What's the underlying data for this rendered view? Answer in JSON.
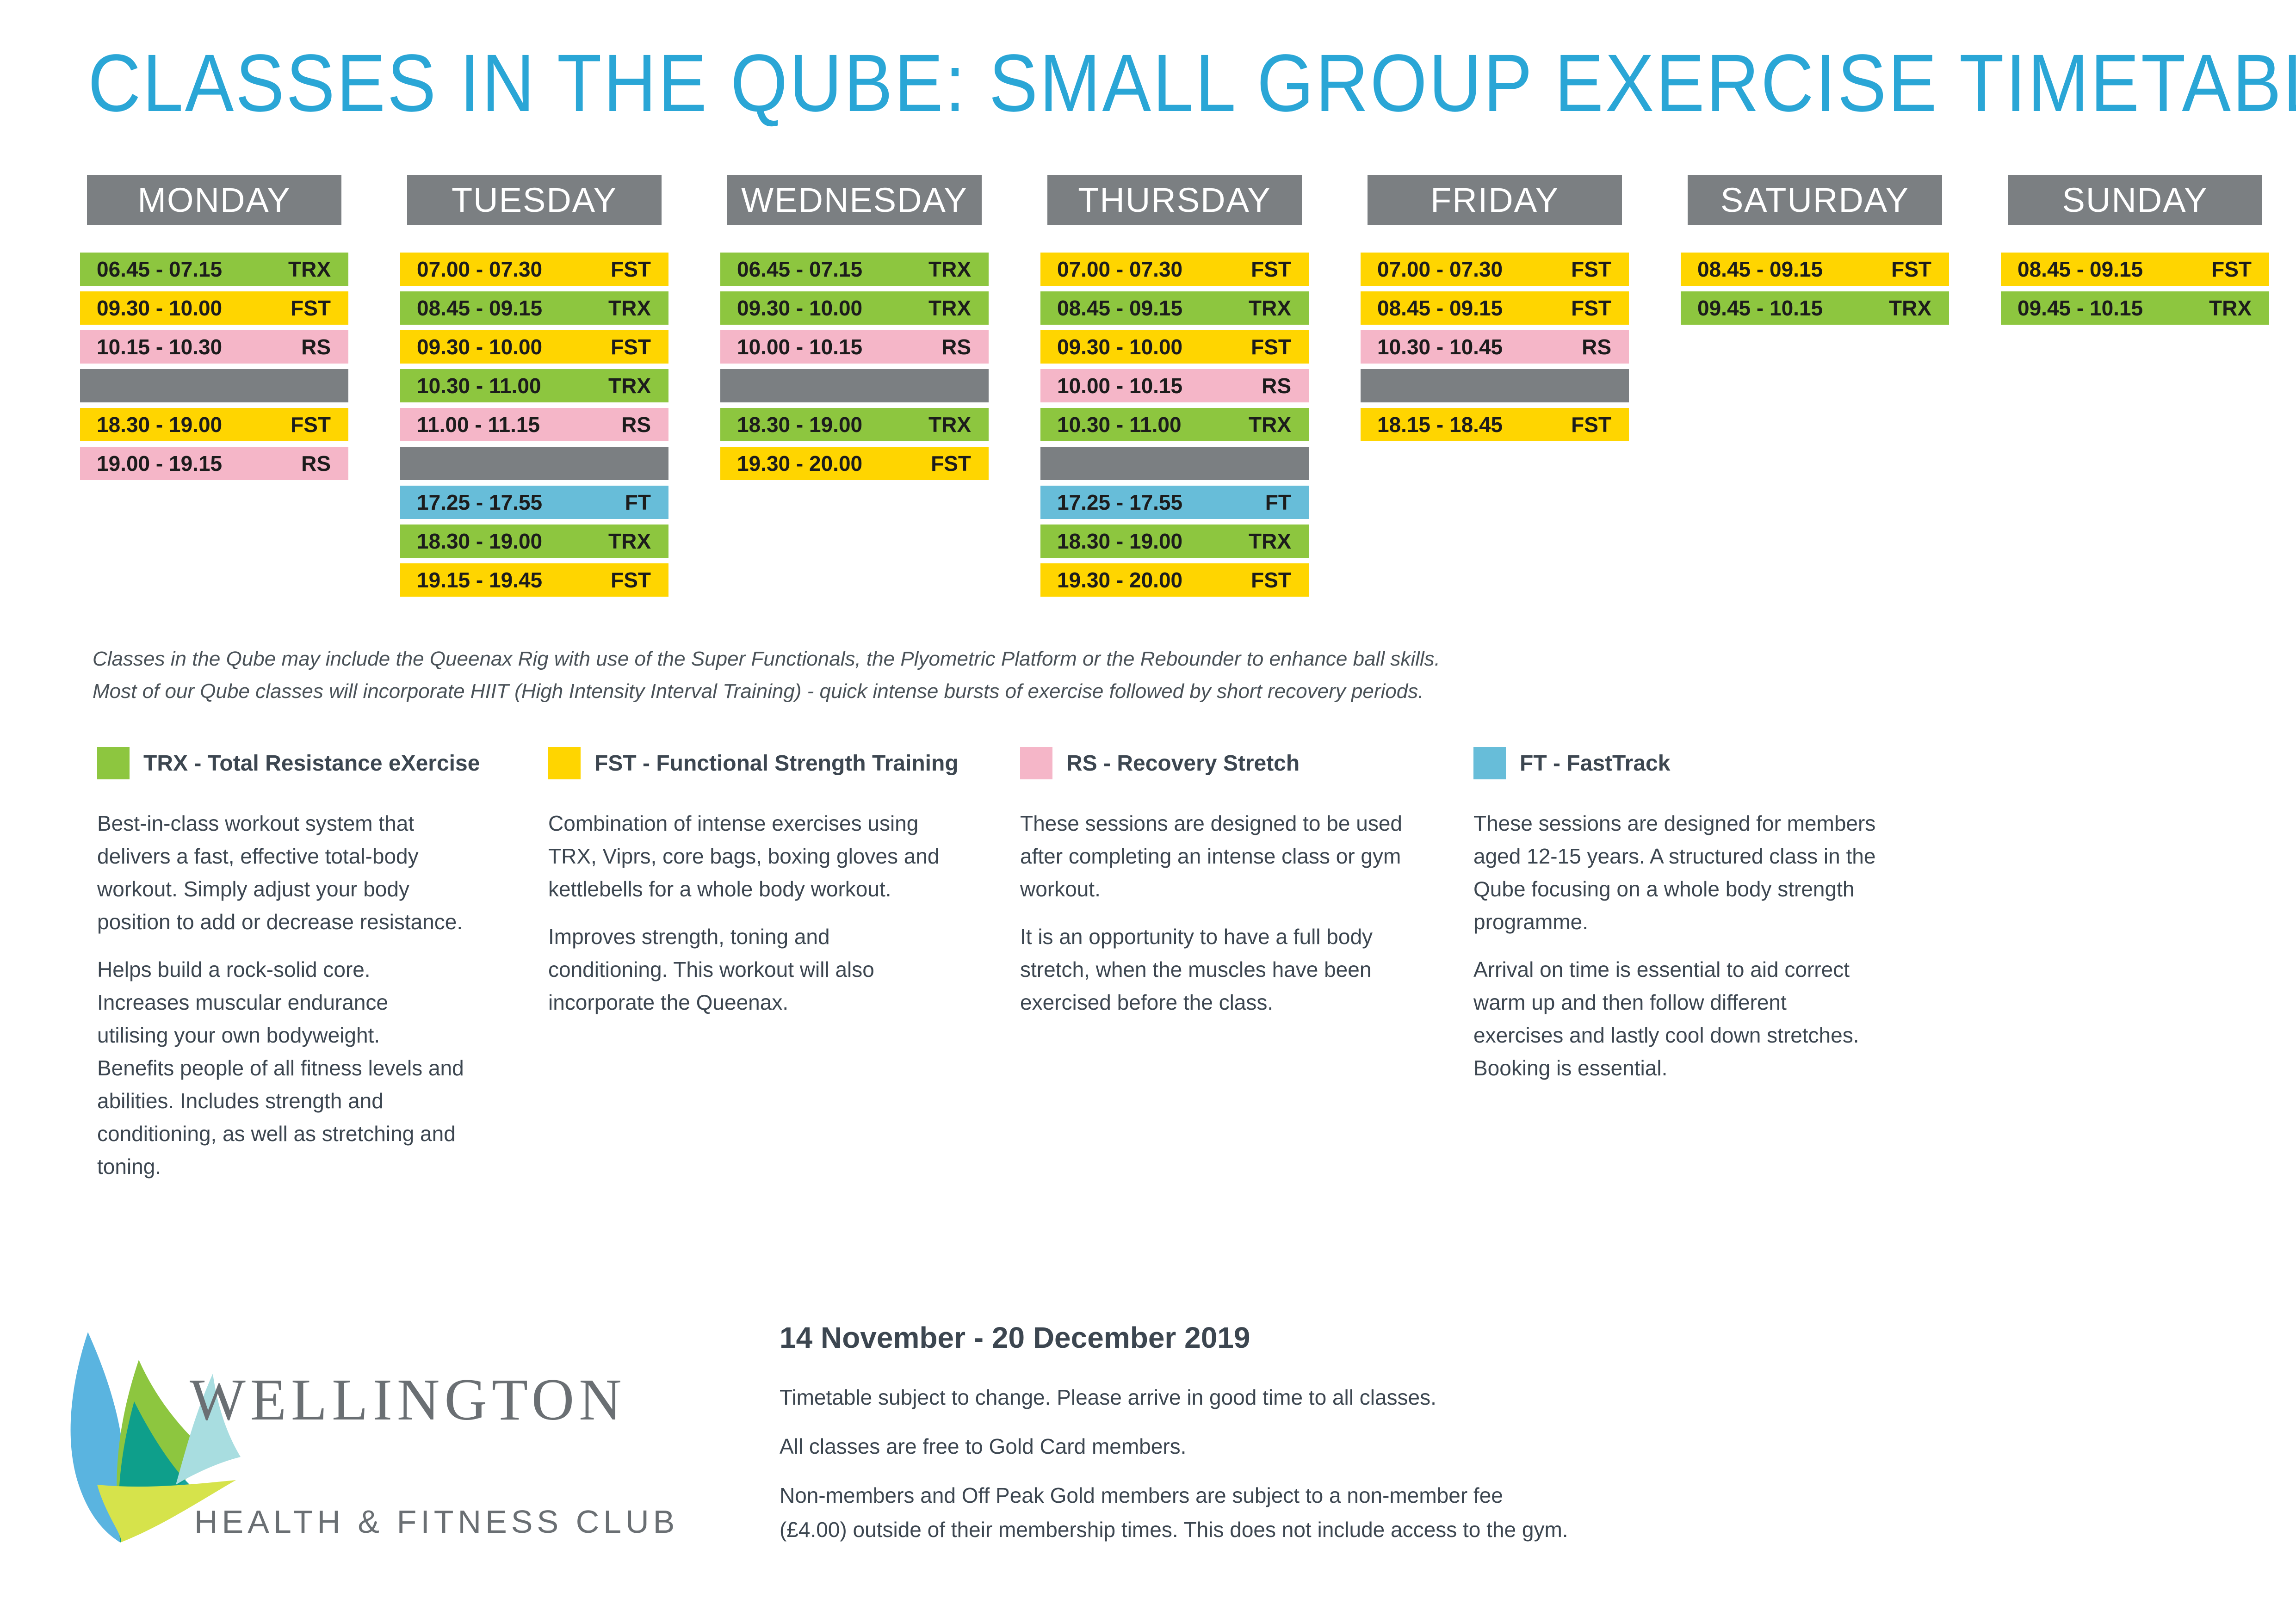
{
  "title": "CLASSES IN THE QUBE: SMALL GROUP EXERCISE TIMETABLE",
  "colors": {
    "title": "#2aa6d6",
    "day_header": "#7b7f82",
    "TRX": "#8dc63f",
    "FST": "#ffd500",
    "RS": "#f5b6c8",
    "FT": "#67bdd9",
    "break": "#7b7f82"
  },
  "days": [
    {
      "name": "MONDAY",
      "slots": [
        {
          "time": "06.45 - 07.15",
          "code": "TRX"
        },
        {
          "time": "09.30 - 10.00",
          "code": "FST"
        },
        {
          "time": "10.15 - 10.30",
          "code": "RS"
        },
        {
          "time": "",
          "code": ""
        },
        {
          "time": "18.30 - 19.00",
          "code": "FST"
        },
        {
          "time": "19.00 - 19.15",
          "code": "RS"
        }
      ]
    },
    {
      "name": "TUESDAY",
      "slots": [
        {
          "time": "07.00 - 07.30",
          "code": "FST"
        },
        {
          "time": "08.45 - 09.15",
          "code": "TRX"
        },
        {
          "time": "09.30 - 10.00",
          "code": "FST"
        },
        {
          "time": "10.30 - 11.00",
          "code": "TRX"
        },
        {
          "time": "11.00 - 11.15",
          "code": "RS"
        },
        {
          "time": "",
          "code": ""
        },
        {
          "time": "17.25 - 17.55",
          "code": "FT"
        },
        {
          "time": "18.30 - 19.00",
          "code": "TRX"
        },
        {
          "time": "19.15 - 19.45",
          "code": "FST"
        }
      ]
    },
    {
      "name": "WEDNESDAY",
      "slots": [
        {
          "time": "06.45 - 07.15",
          "code": "TRX"
        },
        {
          "time": "09.30 - 10.00",
          "code": "TRX"
        },
        {
          "time": "10.00 - 10.15",
          "code": "RS"
        },
        {
          "time": "",
          "code": ""
        },
        {
          "time": "18.30 - 19.00",
          "code": "TRX"
        },
        {
          "time": "19.30 - 20.00",
          "code": "FST"
        }
      ]
    },
    {
      "name": "THURSDAY",
      "slots": [
        {
          "time": "07.00 - 07.30",
          "code": "FST"
        },
        {
          "time": "08.45 - 09.15",
          "code": "TRX"
        },
        {
          "time": "09.30 - 10.00",
          "code": "FST"
        },
        {
          "time": "10.00 - 10.15",
          "code": "RS"
        },
        {
          "time": "10.30 - 11.00",
          "code": "TRX"
        },
        {
          "time": "",
          "code": ""
        },
        {
          "time": "17.25 - 17.55",
          "code": "FT"
        },
        {
          "time": "18.30 - 19.00",
          "code": "TRX"
        },
        {
          "time": "19.30 - 20.00",
          "code": "FST"
        }
      ]
    },
    {
      "name": "FRIDAY",
      "slots": [
        {
          "time": "07.00 - 07.30",
          "code": "FST"
        },
        {
          "time": "08.45 - 09.15",
          "code": "FST"
        },
        {
          "time": "10.30 - 10.45",
          "code": "RS"
        },
        {
          "time": "",
          "code": ""
        },
        {
          "time": "18.15 - 18.45",
          "code": "FST"
        }
      ]
    },
    {
      "name": "SATURDAY",
      "slots": [
        {
          "time": "08.45 - 09.15",
          "code": "FST"
        },
        {
          "time": "09.45 - 10.15",
          "code": "TRX"
        }
      ]
    },
    {
      "name": "SUNDAY",
      "slots": [
        {
          "time": "08.45 - 09.15",
          "code": "FST"
        },
        {
          "time": "09.45 - 10.15",
          "code": "TRX"
        }
      ]
    }
  ],
  "notes": [
    "Classes in the Qube may include the Queenax Rig with use of the Super Functionals, the Plyometric Platform or the Rebounder to enhance ball skills.",
    "Most of our Qube classes will incorporate HIIT (High Intensity Interval Training) - quick intense bursts of exercise followed by short recovery periods."
  ],
  "legend": [
    {
      "code": "TRX",
      "title": "TRX - Total Resistance eXercise",
      "paragraphs": [
        [
          "Best-in-class workout system that",
          "delivers a fast, effective total-body",
          "workout. Simply adjust your body",
          "position to add or decrease resistance."
        ],
        [
          "Helps build a rock-solid core.",
          "Increases muscular endurance",
          "utilising your own bodyweight.",
          "Benefits people of all fitness levels and",
          "abilities. Includes strength and",
          "conditioning, as well as stretching and",
          "toning."
        ]
      ]
    },
    {
      "code": "FST",
      "title": "FST - Functional Strength Training",
      "paragraphs": [
        [
          "Combination of intense exercises using",
          "TRX, Viprs, core bags, boxing gloves and",
          "kettlebells for a whole body workout."
        ],
        [
          "Improves strength, toning and",
          "conditioning. This workout will also",
          "incorporate the Queenax."
        ]
      ]
    },
    {
      "code": "RS",
      "title": "RS - Recovery Stretch",
      "paragraphs": [
        [
          "These sessions are designed to be used",
          "after completing an intense class or gym",
          "workout."
        ],
        [
          "It is an opportunity to have a full body",
          "stretch, when the muscles have been",
          "exercised before the class."
        ]
      ]
    },
    {
      "code": "FT",
      "title": "FT - FastTrack",
      "paragraphs": [
        [
          "These sessions are designed for members",
          "aged 12-15 years. A structured class in the",
          "Qube focusing on a whole body strength",
          "programme."
        ],
        [
          "Arrival on time is essential to aid correct",
          "warm up and then follow different",
          "exercises and lastly cool down stretches.",
          "Booking is essential."
        ]
      ]
    }
  ],
  "logo": {
    "wordmark": "WELLINGTON",
    "tagline": "HEALTH & FITNESS CLUB"
  },
  "footer": {
    "date_range": "14 November - 20 December 2019",
    "lines": [
      [
        "Timetable subject to change. Please arrive in good time to all classes."
      ],
      [
        "All classes are free to Gold Card members."
      ],
      [
        "Non-members and Off Peak Gold members are subject to a non-member fee",
        "(£4.00) outside of their membership times. This does not include access to the gym."
      ]
    ]
  }
}
